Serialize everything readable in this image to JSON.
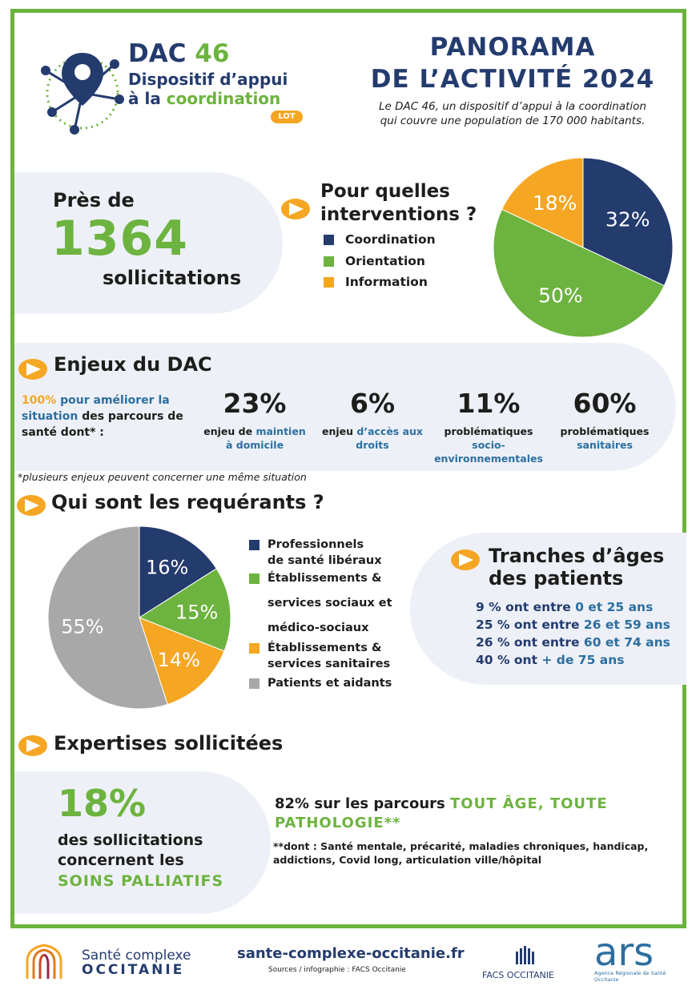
{
  "colors": {
    "navy": "#243b6e",
    "green": "#6db33f",
    "orange": "#f5a623",
    "gray": "#a8a8a8",
    "panel": "#edf0f7",
    "teal": "#2c6fa0"
  },
  "logo": {
    "title": "DAC 46",
    "line1": "Dispositif d’appui",
    "line2_pre": "à la ",
    "line2_hl": "coordination",
    "badge": "LOT"
  },
  "header": {
    "title1": "PANORAMA",
    "title2": "DE L’ACTIVITÉ 2024",
    "subtitle1": "Le DAC 46, un dispositif d’appui à la coordination",
    "subtitle2": "qui couvre une population de 170 000 habitants."
  },
  "solicitations": {
    "prefix": "Près de",
    "number": "1364",
    "suffix": "sollicitations"
  },
  "interventions": {
    "title1": "Pour quelles",
    "title2": "interventions ?",
    "legend": [
      {
        "label": "Coordination",
        "color": "#243b6e"
      },
      {
        "label": "Orientation",
        "color": "#6db33f"
      },
      {
        "label": "Information",
        "color": "#f5a623"
      }
    ]
  },
  "enjeux": {
    "title": "Enjeux du DAC",
    "intro_pct": "100%",
    "intro_a": " pour améliorer la",
    "intro_b": "situation",
    "intro_c": " des parcours de",
    "intro_d": "santé dont* :",
    "items": [
      {
        "pct": "23%",
        "l1a": "enjeu de ",
        "l1b": "maintien",
        "l2": "à domicile"
      },
      {
        "pct": "6%",
        "l1a": "enjeu ",
        "l1b": "d’accès aux",
        "l2": "droits"
      },
      {
        "pct": "11%",
        "l1a": "problématiques",
        "l1b": "",
        "l2": "socio-",
        "l3": "environnementales"
      },
      {
        "pct": "60%",
        "l1a": "problématiques",
        "l1b": "",
        "l2": "sanitaires"
      }
    ],
    "footnote": "*plusieurs enjeux peuvent concerner une même situation"
  },
  "requerants": {
    "title": "Qui sont les requérants ?",
    "legend": [
      {
        "l1": "Professionnels",
        "l2": "de santé libéraux",
        "color": "#243b6e"
      },
      {
        "l1": "Établissements &",
        "l2": "services sociaux et",
        "l3": "médico-sociaux",
        "color": "#6db33f"
      },
      {
        "l1": "Établissements &",
        "l2": "services sanitaires",
        "color": "#f5a623"
      },
      {
        "l1": "Patients et aidants",
        "color": "#a8a8a8"
      }
    ]
  },
  "ages": {
    "title1": "Tranches d’âges",
    "title2": "des patients",
    "rows": [
      {
        "a": "9 %",
        "b": " ont entre ",
        "c": "0 et 25 ans"
      },
      {
        "a": "25 %",
        "b": " ont entre ",
        "c": "26 et 59 ans"
      },
      {
        "a": "26 %",
        "b": " ont entre ",
        "c": "60 et 74 ans"
      },
      {
        "a": "40 %",
        "b": " ont ",
        "c": "+ de 75 ans"
      }
    ]
  },
  "expertises": {
    "title": "Expertises sollicitées",
    "pct": "18%",
    "l1": "des sollicitations",
    "l2": "concernent les",
    "l3": "SOINS PALLIATIFS",
    "right_a": "82% sur les parcours ",
    "right_b": "TOUT ÂGE, TOUTE",
    "right_c": "PATHOLOGIE**",
    "note1": "**dont : Santé mentale, précarité, maladies chroniques, handicap,",
    "note2": "addictions, Covid long, articulation ville/hôpital"
  },
  "footer": {
    "sc1": "Santé complexe",
    "sc2": "OCCITANIE",
    "url": "sante-complexe-occitanie.fr",
    "sources": "Sources / infographie : FACS Occitanie",
    "facs": "FACS OCCITANIE",
    "ars": "ars",
    "ars_sub1": "Agence Régionale de Santé",
    "ars_sub2": "Occitanie"
  },
  "chart_data": [
    {
      "type": "pie",
      "title": "",
      "categories": [
        "Coordination",
        "Orientation",
        "Information"
      ],
      "values": [
        32,
        50,
        18
      ],
      "labels": [
        "32%",
        "50%",
        "18%"
      ],
      "colors": [
        "#243b6e",
        "#6db33f",
        "#f5a623"
      ]
    },
    {
      "type": "pie",
      "title": "",
      "categories": [
        "Professionnels de santé libéraux",
        "Établissements & services sociaux et médico-sociaux",
        "Établissements & services sanitaires",
        "Patients et aidants"
      ],
      "values": [
        16,
        15,
        14,
        55
      ],
      "labels": [
        "16%",
        "15%",
        "14%",
        "55%"
      ],
      "colors": [
        "#243b6e",
        "#6db33f",
        "#f5a623",
        "#a8a8a8"
      ]
    }
  ]
}
